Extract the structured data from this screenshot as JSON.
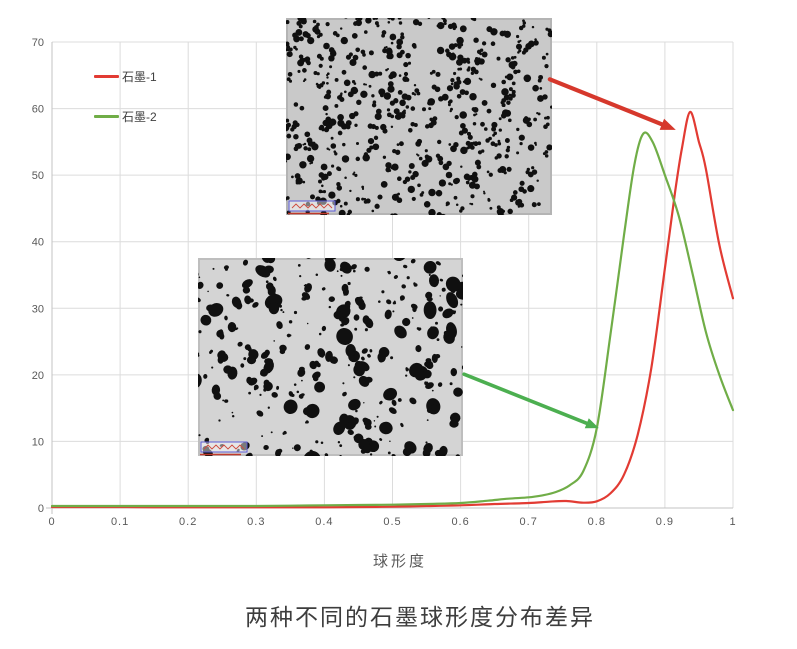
{
  "title": "两种不同的石墨球形度分布差异",
  "chart_data": {
    "type": "line",
    "title": "两种不同的石墨球形度分布差异",
    "xlabel": "球形度",
    "ylabel": "",
    "xlim": [
      0,
      1
    ],
    "ylim": [
      0,
      70
    ],
    "grid": true,
    "legend_position": "top-left",
    "x_ticks": [
      0,
      0.1,
      0.2,
      0.3,
      0.4,
      0.5,
      0.6,
      0.7,
      0.8,
      0.9,
      1
    ],
    "x_tick_labels": [
      "0",
      "0.1",
      "0.2",
      "0.3",
      "0.4",
      "0.5",
      "0.6",
      "0.7",
      "0.8",
      "0.9",
      "1"
    ],
    "y_ticks": [
      0,
      10,
      20,
      30,
      40,
      50,
      60,
      70
    ],
    "y_tick_labels": [
      "0",
      "10",
      "20",
      "30",
      "40",
      "50",
      "60",
      "70"
    ],
    "colors": {
      "grid": "#dcdcdc",
      "axis": "#c3c3c3",
      "tick_text": "#595959",
      "legend_text": "#404040",
      "title_text": "#3d3d3d"
    },
    "series": [
      {
        "name": "石墨-1",
        "color": "#e23b33",
        "points": [
          [
            0,
            0.15
          ],
          [
            0.05,
            0.15
          ],
          [
            0.1,
            0.15
          ],
          [
            0.15,
            0.1
          ],
          [
            0.2,
            0.1
          ],
          [
            0.25,
            0.1
          ],
          [
            0.3,
            0.1
          ],
          [
            0.35,
            0.1
          ],
          [
            0.4,
            0.1
          ],
          [
            0.45,
            0.15
          ],
          [
            0.5,
            0.2
          ],
          [
            0.55,
            0.3
          ],
          [
            0.6,
            0.4
          ],
          [
            0.65,
            0.6
          ],
          [
            0.7,
            0.75
          ],
          [
            0.73,
            0.95
          ],
          [
            0.755,
            1.05
          ],
          [
            0.78,
            0.8
          ],
          [
            0.8,
            1.0
          ],
          [
            0.82,
            2.2
          ],
          [
            0.84,
            5
          ],
          [
            0.86,
            11
          ],
          [
            0.88,
            21
          ],
          [
            0.9,
            36
          ],
          [
            0.915,
            47.5
          ],
          [
            0.925,
            54
          ],
          [
            0.937,
            59.5
          ],
          [
            0.95,
            55
          ],
          [
            0.96,
            51
          ],
          [
            0.98,
            39.5
          ],
          [
            1,
            31.5
          ]
        ]
      },
      {
        "name": "石墨-2",
        "color": "#70ad47",
        "points": [
          [
            0,
            0.3
          ],
          [
            0.05,
            0.3
          ],
          [
            0.1,
            0.3
          ],
          [
            0.15,
            0.3
          ],
          [
            0.2,
            0.3
          ],
          [
            0.25,
            0.3
          ],
          [
            0.3,
            0.3
          ],
          [
            0.35,
            0.35
          ],
          [
            0.4,
            0.4
          ],
          [
            0.45,
            0.45
          ],
          [
            0.5,
            0.5
          ],
          [
            0.55,
            0.6
          ],
          [
            0.6,
            0.75
          ],
          [
            0.64,
            1.1
          ],
          [
            0.67,
            1.4
          ],
          [
            0.7,
            1.6
          ],
          [
            0.72,
            1.9
          ],
          [
            0.74,
            2.4
          ],
          [
            0.76,
            3.4
          ],
          [
            0.78,
            5.5
          ],
          [
            0.8,
            12
          ],
          [
            0.82,
            26
          ],
          [
            0.84,
            41
          ],
          [
            0.855,
            51.5
          ],
          [
            0.868,
            56.2
          ],
          [
            0.882,
            55
          ],
          [
            0.9,
            50
          ],
          [
            0.92,
            44
          ],
          [
            0.94,
            35.5
          ],
          [
            0.96,
            26.5
          ],
          [
            0.98,
            20
          ],
          [
            1,
            14.7
          ]
        ]
      }
    ],
    "annotations": [
      {
        "type": "arrow",
        "color": "#d6382c",
        "from": [
          0.731,
          64.4
        ],
        "to": [
          0.916,
          56.8
        ],
        "links": "micrograph-graphite-1 to 石墨-1 curve"
      },
      {
        "type": "arrow",
        "color": "#4caf50",
        "from": [
          0.605,
          20.1
        ],
        "to": [
          0.803,
          12.0
        ],
        "links": "micrograph-graphite-2 to 石墨-2 curve"
      }
    ],
    "stray_mark": {
      "x_start": 0.209,
      "x_end": 0.231,
      "y": 0,
      "color": "#c59a52"
    },
    "inset_images": [
      {
        "name": "micrograph-graphite-1",
        "series": "石墨-1",
        "appearance": "dense small round black graphite nodules on light gray background, blue-framed scale bar with red markings at bottom left"
      },
      {
        "name": "micrograph-graphite-2",
        "series": "石墨-2",
        "appearance": "coarser irregular black graphite particles on light gray background, blue-framed scale bar with red markings at bottom left"
      }
    ]
  }
}
